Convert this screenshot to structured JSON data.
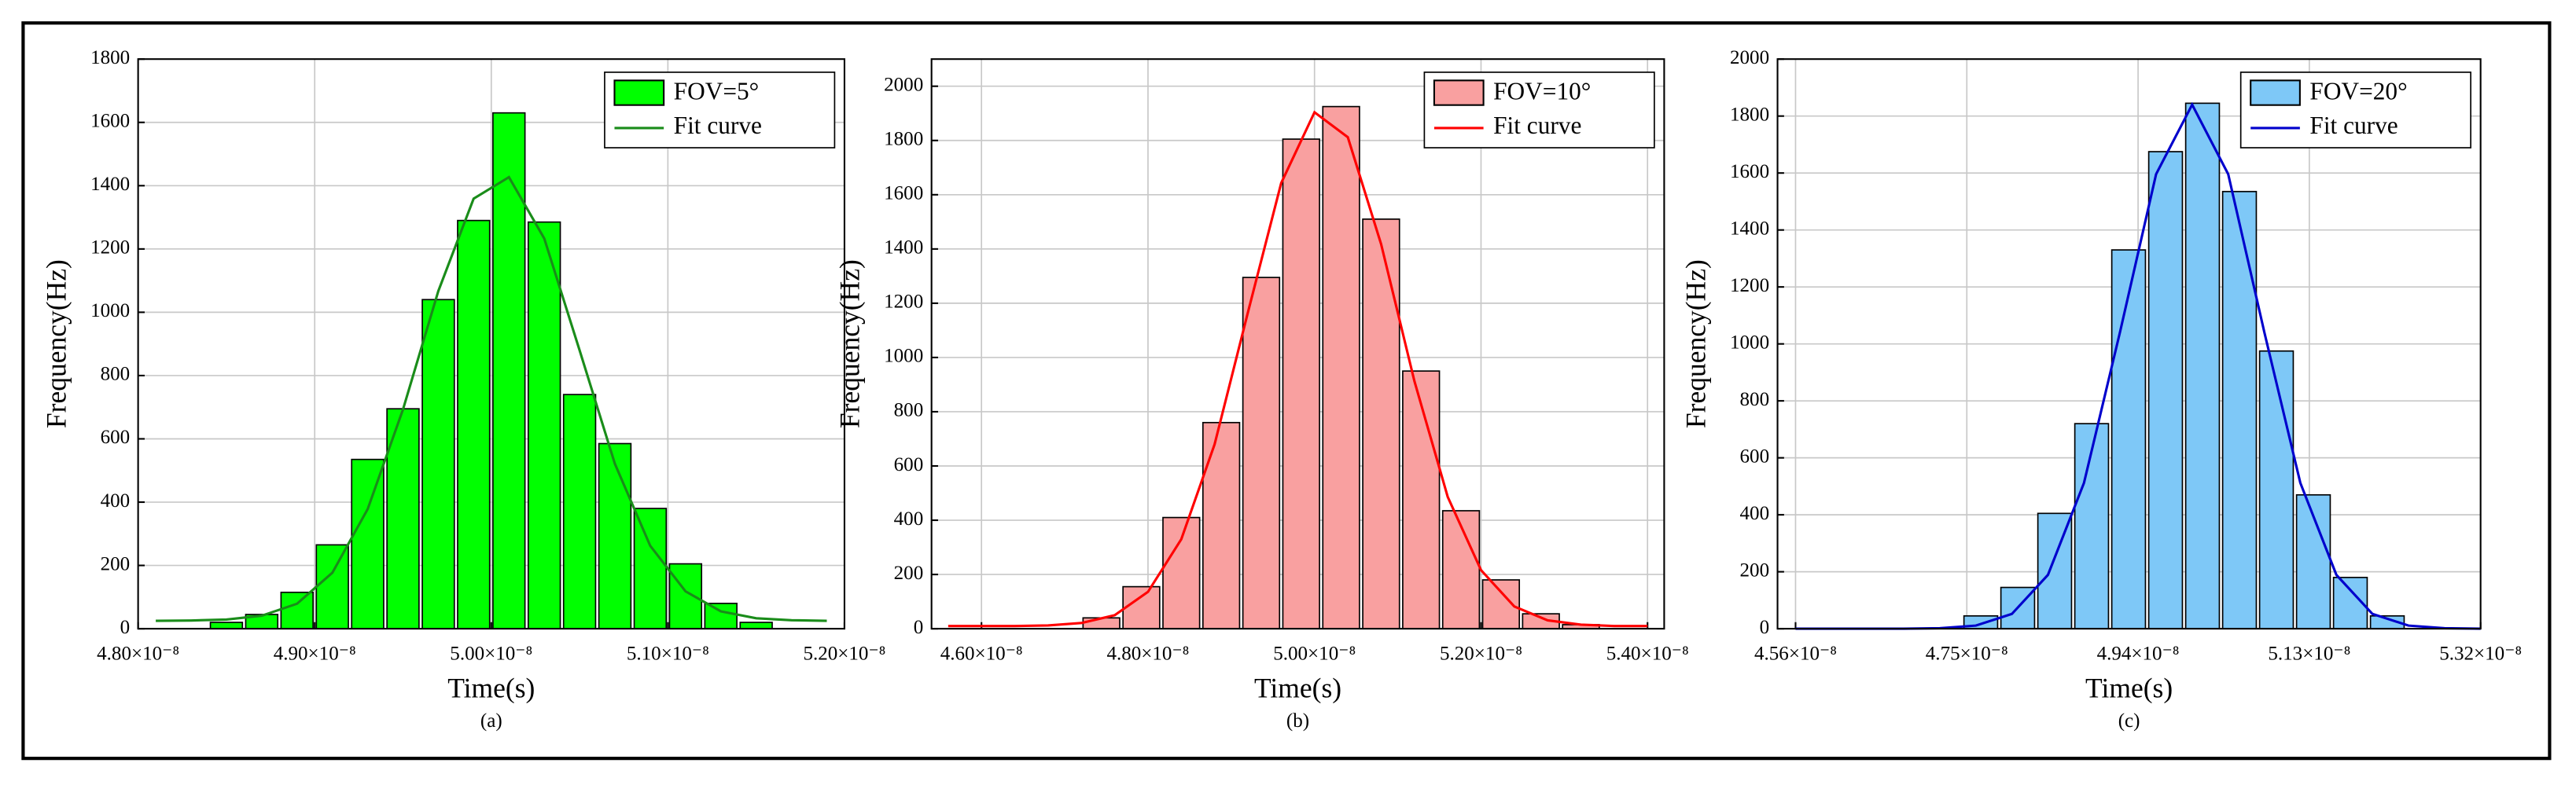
{
  "chart_data": [
    {
      "type": "histogram",
      "caption": "(a)",
      "xlabel": "Time(s)",
      "ylabel": "Frequency(Hz)",
      "name": "FOV=5°",
      "color": "#00ff00",
      "edgecolor": "#000000",
      "bins": [
        4.84e-08,
        4.86e-08,
        4.88e-08,
        4.9e-08,
        4.92e-08,
        4.94e-08,
        4.96e-08,
        4.98e-08,
        5e-08,
        5.02e-08,
        5.04e-08,
        5.06e-08,
        5.08e-08,
        5.1e-08,
        5.12e-08,
        5.14e-08,
        5.16e-08
      ],
      "counts": [
        20,
        45,
        115,
        265,
        535,
        695,
        1040,
        1290,
        1630,
        1285,
        740,
        585,
        380,
        205,
        80,
        20
      ],
      "fit": {
        "name": "Fit curve",
        "color": "#1a8c1a",
        "x": [
          4.81e-08,
          4.83e-08,
          4.85e-08,
          4.87e-08,
          4.89e-08,
          4.91e-08,
          4.93e-08,
          4.95e-08,
          4.97e-08,
          4.99e-08,
          5.01e-08,
          5.03e-08,
          5.05e-08,
          5.07e-08,
          5.09e-08,
          5.11e-08,
          5.13e-08,
          5.15e-08,
          5.17e-08,
          5.19e-08
        ],
        "values": [
          25,
          26,
          29,
          41,
          79,
          177,
          378,
          693,
          1067,
          1359,
          1427,
          1233,
          880,
          521,
          262,
          118,
          55,
          33,
          27,
          25
        ]
      },
      "xlim": [
        4.8e-08,
        5.2e-08
      ],
      "xticks": [
        {
          "value": 4.8e-08,
          "label": "4.80×10⁻⁸"
        },
        {
          "value": 4.9e-08,
          "label": "4.90×10⁻⁸"
        },
        {
          "value": 5e-08,
          "label": "5.00×10⁻⁸"
        },
        {
          "value": 5.1e-08,
          "label": "5.10×10⁻⁸"
        },
        {
          "value": 5.2e-08,
          "label": "5.20×10⁻⁸"
        }
      ],
      "ylim": [
        0,
        1800
      ],
      "yticks": [
        0,
        200,
        400,
        600,
        800,
        1000,
        1200,
        1400,
        1600,
        1800
      ],
      "grid": true,
      "legend": "upper-right"
    },
    {
      "type": "histogram",
      "caption": "(b)",
      "xlabel": "Time(s)",
      "ylabel": "Frequency(Hz)",
      "name": "FOV=10°",
      "color": "#f9a0a0",
      "edgecolor": "#000000",
      "bins": [
        4.72e-08,
        4.768e-08,
        4.816e-08,
        4.864e-08,
        4.912e-08,
        4.96e-08,
        5.008e-08,
        5.056e-08,
        5.104e-08,
        5.152e-08,
        5.2e-08,
        5.248e-08,
        5.296e-08,
        5.344e-08
      ],
      "counts": [
        40,
        155,
        410,
        760,
        1295,
        1805,
        1925,
        1510,
        950,
        435,
        180,
        55,
        15
      ],
      "fit": {
        "name": "Fit curve",
        "color": "#ff0000",
        "x": [
          4.56e-08,
          4.6e-08,
          4.64e-08,
          4.68e-08,
          4.72e-08,
          4.76e-08,
          4.8e-08,
          4.84e-08,
          4.88e-08,
          4.92e-08,
          4.96e-08,
          5e-08,
          5.04e-08,
          5.08e-08,
          5.12e-08,
          5.16e-08,
          5.2e-08,
          5.24e-08,
          5.28e-08,
          5.32e-08,
          5.36e-08,
          5.4e-08
        ],
        "values": [
          10,
          10,
          10,
          12,
          21,
          50,
          136,
          330,
          680,
          1166,
          1643,
          1904,
          1812,
          1418,
          913,
          486,
          216,
          82,
          31,
          15,
          10,
          10
        ]
      },
      "xlim": [
        4.54e-08,
        5.42e-08
      ],
      "xticks": [
        {
          "value": 4.6e-08,
          "label": "4.60×10⁻⁸"
        },
        {
          "value": 4.8e-08,
          "label": "4.80×10⁻⁸"
        },
        {
          "value": 5e-08,
          "label": "5.00×10⁻⁸"
        },
        {
          "value": 5.2e-08,
          "label": "5.20×10⁻⁸"
        },
        {
          "value": 5.4e-08,
          "label": "5.40×10⁻⁸"
        }
      ],
      "ylim": [
        0,
        2100
      ],
      "yticks": [
        0,
        200,
        400,
        600,
        800,
        1000,
        1200,
        1400,
        1600,
        1800,
        2000
      ],
      "grid": true,
      "legend": "upper-right"
    },
    {
      "type": "histogram",
      "caption": "(c)",
      "xlabel": "Time(s)",
      "ylabel": "Frequency(Hz)",
      "name": "FOV=20°",
      "color": "#7ec8f7",
      "edgecolor": "#000000",
      "bins": [
        4.745e-08,
        4.786e-08,
        4.827e-08,
        4.868e-08,
        4.909e-08,
        4.95e-08,
        4.991e-08,
        5.032e-08,
        5.073e-08,
        5.114e-08,
        5.155e-08,
        5.196e-08,
        5.237e-08
      ],
      "counts": [
        45,
        145,
        405,
        720,
        1330,
        1675,
        1845,
        1535,
        975,
        470,
        180,
        45
      ],
      "fit": {
        "name": "Fit curve",
        "color": "#0000cc",
        "x": [
          4.56e-08,
          4.6e-08,
          4.64e-08,
          4.68e-08,
          4.72e-08,
          4.76e-08,
          4.8e-08,
          4.84e-08,
          4.88e-08,
          4.92e-08,
          4.96e-08,
          5e-08,
          5.04e-08,
          5.08e-08,
          5.12e-08,
          5.16e-08,
          5.2e-08,
          5.24e-08,
          5.28e-08,
          5.32e-08
        ],
        "values": [
          0,
          0,
          0,
          0,
          2,
          11,
          52,
          189,
          512,
          1042,
          1596,
          1840,
          1596,
          1042,
          512,
          189,
          52,
          11,
          2,
          0
        ]
      },
      "xlim": [
        4.54e-08,
        5.32e-08
      ],
      "xticks": [
        {
          "value": 4.56e-08,
          "label": "4.56×10⁻⁸"
        },
        {
          "value": 4.75e-08,
          "label": "4.75×10⁻⁸"
        },
        {
          "value": 4.94e-08,
          "label": "4.94×10⁻⁸"
        },
        {
          "value": 5.13e-08,
          "label": "5.13×10⁻⁸"
        },
        {
          "value": 5.32e-08,
          "label": "5.32×10⁻⁸"
        }
      ],
      "ylim": [
        0,
        2000
      ],
      "yticks": [
        0,
        200,
        400,
        600,
        800,
        1000,
        1200,
        1400,
        1600,
        1800,
        2000
      ],
      "grid": true,
      "legend": "upper-right"
    }
  ]
}
